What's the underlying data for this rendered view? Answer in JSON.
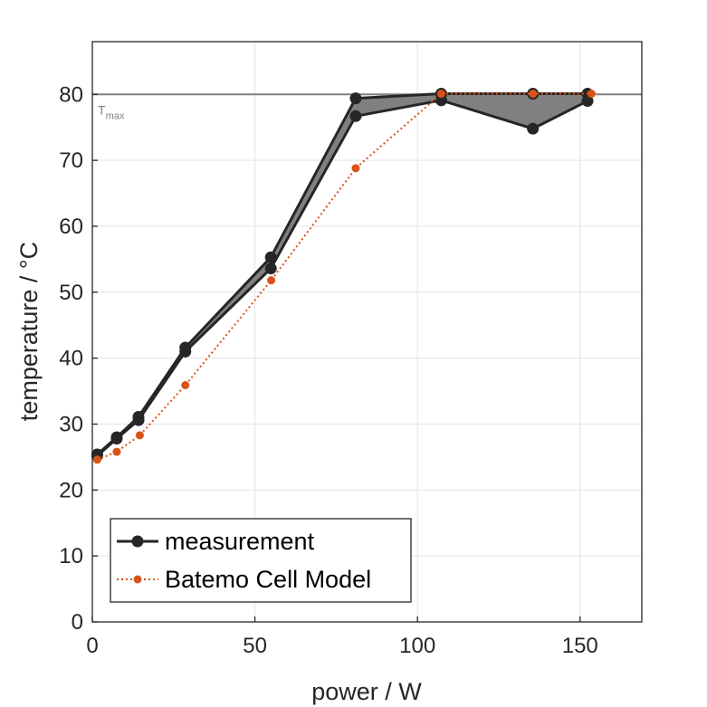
{
  "chart_data": {
    "type": "line",
    "xlabel": "power / W",
    "ylabel": "temperature / °C",
    "xlim": [
      0,
      169
    ],
    "ylim": [
      0,
      88
    ],
    "xticks": [
      0,
      50,
      100,
      150
    ],
    "yticks": [
      0,
      10,
      20,
      30,
      40,
      50,
      60,
      70,
      80
    ],
    "grid": true,
    "legend_placement": "bottom-left",
    "reference_line": {
      "y": 80,
      "label": "T",
      "label_subscript": "max",
      "color": "#808080"
    },
    "band": {
      "description_color": "#808080",
      "upper": [
        {
          "x": 1.5,
          "y": 25.4
        },
        {
          "x": 7.5,
          "y": 28.0
        },
        {
          "x": 14.2,
          "y": 31.1
        },
        {
          "x": 28.6,
          "y": 41.6
        },
        {
          "x": 54.9,
          "y": 55.3
        },
        {
          "x": 81.0,
          "y": 79.4
        },
        {
          "x": 107.3,
          "y": 80.1
        },
        {
          "x": 135.5,
          "y": 80.1
        },
        {
          "x": 152.3,
          "y": 80.1
        }
      ],
      "lower": [
        {
          "x": 1.5,
          "y": 25.2
        },
        {
          "x": 7.5,
          "y": 27.8
        },
        {
          "x": 14.2,
          "y": 30.6
        },
        {
          "x": 28.6,
          "y": 41.0
        },
        {
          "x": 54.9,
          "y": 53.6
        },
        {
          "x": 81.0,
          "y": 76.7
        },
        {
          "x": 107.3,
          "y": 79.1
        },
        {
          "x": 135.5,
          "y": 74.8
        },
        {
          "x": 152.3,
          "y": 79.0
        }
      ]
    },
    "series": [
      {
        "name": "measurement",
        "color": "#262626",
        "marker": "circle",
        "line_style": "solid",
        "points": [
          {
            "x": 1.5,
            "y": 25.4
          },
          {
            "x": 7.5,
            "y": 28.0
          },
          {
            "x": 14.2,
            "y": 31.1
          },
          {
            "x": 28.6,
            "y": 41.6
          },
          {
            "x": 54.9,
            "y": 55.3
          },
          {
            "x": 81.0,
            "y": 79.4
          },
          {
            "x": 107.3,
            "y": 80.1
          },
          {
            "x": 135.5,
            "y": 80.1
          },
          {
            "x": 152.3,
            "y": 80.1
          },
          {
            "x": 1.5,
            "y": 25.2
          },
          {
            "x": 7.5,
            "y": 27.8
          },
          {
            "x": 14.2,
            "y": 30.6
          },
          {
            "x": 28.6,
            "y": 41.0
          },
          {
            "x": 54.9,
            "y": 53.6
          },
          {
            "x": 81.0,
            "y": 76.7
          },
          {
            "x": 107.3,
            "y": 79.1
          },
          {
            "x": 135.5,
            "y": 74.8
          },
          {
            "x": 152.3,
            "y": 79.0
          }
        ]
      },
      {
        "name": "Batemo Cell Model",
        "color": "#d95319",
        "marker": "dot",
        "line_style": "dotted",
        "points": [
          {
            "x": 1.5,
            "y": 24.6
          },
          {
            "x": 7.5,
            "y": 25.8
          },
          {
            "x": 14.6,
            "y": 28.3
          },
          {
            "x": 28.6,
            "y": 35.9
          },
          {
            "x": 55.0,
            "y": 51.8
          },
          {
            "x": 81.0,
            "y": 68.8
          },
          {
            "x": 107.3,
            "y": 80.1
          },
          {
            "x": 135.5,
            "y": 80.1
          },
          {
            "x": 153.5,
            "y": 80.1
          }
        ]
      }
    ]
  }
}
